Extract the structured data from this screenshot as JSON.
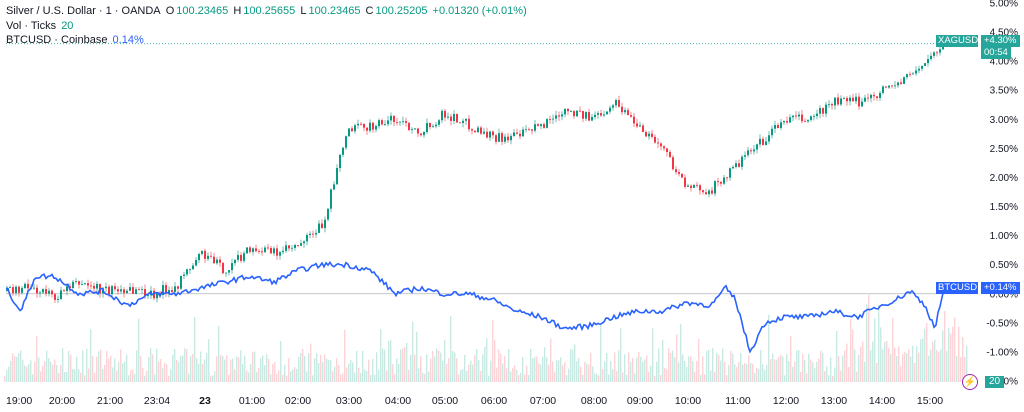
{
  "legend": {
    "symbol": "Silver / U.S. Dollar · 1 · OANDA",
    "o_label": "O",
    "o_value": "100.23465",
    "h_label": "H",
    "h_value": "100.25655",
    "l_label": "L",
    "l_value": "100.23465",
    "c_label": "C",
    "c_value": "100.25205",
    "change": "+0.01320 (+0.01%)",
    "vol_label": "Vol · Ticks",
    "vol_value": "20",
    "compare_label": "BTCUSD · Coinbase",
    "compare_value": "0.14%"
  },
  "badges": {
    "xag_name": "XAGUSD",
    "xag_value": "+4.30%",
    "xag_countdown": "00:54",
    "btc_name": "BTCUSD",
    "btc_value": "+0.14%",
    "vol_value": "20",
    "vol_icon": "lightning-icon"
  },
  "colors": {
    "up": "#089981",
    "down": "#f23645",
    "btc": "#2962ff",
    "xag_badge": "#26a69a"
  },
  "chart_data": {
    "type": "line",
    "x_ticks": [
      "19:00",
      "20:00",
      "21:00",
      "23:04",
      "23",
      "01:00",
      "02:00",
      "03:00",
      "04:00",
      "05:00",
      "06:00",
      "07:00",
      "08:00",
      "09:00",
      "10:00",
      "11:00",
      "12:00",
      "13:00",
      "14:00",
      "15:00"
    ],
    "y_ticks": [
      "5.00%",
      "4.50%",
      "4.00%",
      "3.50%",
      "3.00%",
      "2.50%",
      "2.00%",
      "1.50%",
      "1.00%",
      "0.50%",
      "0.00%",
      "-0.50%",
      "-1.00%",
      "-1.50%"
    ],
    "ylim": [
      -1.5,
      5.0
    ],
    "series": [
      {
        "name": "XAGUSD",
        "style": "candles",
        "x": [
          0,
          0.5,
          1,
          1.5,
          2,
          2.5,
          3,
          3.5,
          4,
          4.5,
          5,
          5.5,
          6,
          6.5,
          7,
          7.5,
          8,
          8.5,
          9,
          9.5,
          10,
          10.5,
          11,
          11.5,
          12,
          12.5,
          13,
          13.5,
          14,
          14.5,
          15,
          15.5,
          16,
          16.5,
          17,
          17.5,
          18,
          18.5,
          19.3
        ],
        "values": [
          0.05,
          0.1,
          -0.05,
          0.2,
          0.05,
          0.1,
          0.0,
          0.15,
          0.7,
          0.4,
          0.8,
          0.7,
          0.8,
          1.2,
          2.8,
          2.9,
          3.0,
          2.8,
          3.1,
          2.9,
          2.7,
          2.7,
          2.9,
          3.2,
          3.0,
          3.3,
          2.9,
          2.5,
          1.8,
          1.8,
          2.2,
          2.6,
          3.0,
          3.0,
          3.3,
          3.3,
          3.5,
          3.7,
          4.3
        ]
      },
      {
        "name": "BTCUSD",
        "style": "line",
        "x": [
          0,
          0.3,
          0.6,
          1,
          1.5,
          2,
          2.5,
          3,
          3.5,
          4,
          4.5,
          5,
          5.5,
          6,
          6.5,
          7,
          7.5,
          8,
          8.5,
          9,
          9.5,
          10,
          10.5,
          11,
          11.5,
          12,
          12.5,
          13,
          13.5,
          14,
          14.5,
          14.8,
          15,
          15.3,
          15.6,
          16,
          16.5,
          17,
          17.5,
          18,
          18.3,
          18.6,
          18.9,
          19.1,
          19.3
        ],
        "values": [
          0.1,
          -0.3,
          0.3,
          0.3,
          0.0,
          0.05,
          -0.2,
          0.0,
          0.0,
          0.1,
          0.2,
          0.3,
          0.2,
          0.4,
          0.5,
          0.5,
          0.4,
          0.0,
          0.1,
          0.0,
          0.0,
          -0.1,
          -0.3,
          -0.4,
          -0.6,
          -0.55,
          -0.4,
          -0.3,
          -0.3,
          -0.15,
          -0.2,
          0.1,
          -0.1,
          -1.0,
          -0.5,
          -0.4,
          -0.4,
          -0.3,
          -0.4,
          -0.2,
          -0.1,
          0.05,
          -0.2,
          -0.6,
          0.14
        ]
      }
    ],
    "volume_max_note": "",
    "grid": false
  }
}
